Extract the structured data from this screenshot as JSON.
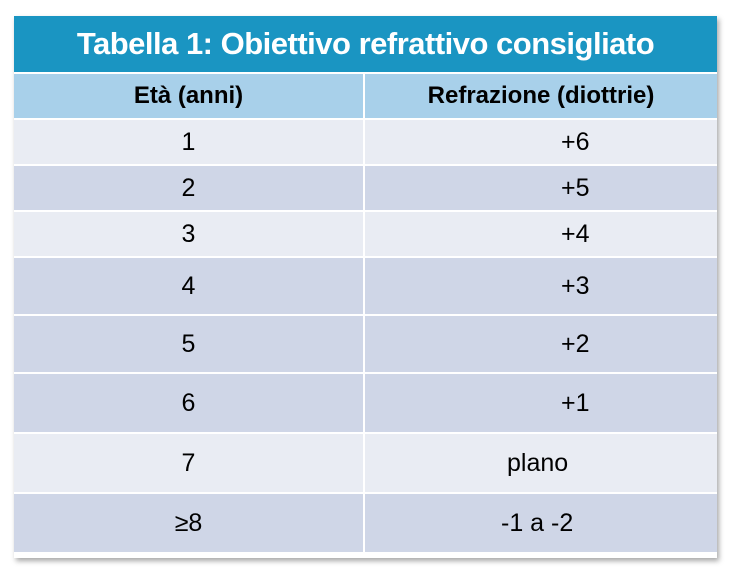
{
  "table": {
    "title": "Tabella 1: Obiettivo refrattivo consigliato",
    "headers": [
      "Età (anni)",
      "Refrazione (diottrie)"
    ],
    "rows": [
      {
        "age": "1",
        "refraction": "+6"
      },
      {
        "age": "2",
        "refraction": "+5"
      },
      {
        "age": "3",
        "refraction": "+4"
      },
      {
        "age": "4",
        "refraction": "+3"
      },
      {
        "age": "5",
        "refraction": "+2"
      },
      {
        "age": "6",
        "refraction": "+1"
      },
      {
        "age": "7",
        "refraction": "plano"
      },
      {
        "age": "≥8",
        "refraction": "-1 a -2"
      }
    ],
    "colors": {
      "title_bg": "#1a95c2",
      "header_bg": "#a8d0ea",
      "row_light": "#e9ecf3",
      "row_dark": "#cfd6e7"
    }
  }
}
